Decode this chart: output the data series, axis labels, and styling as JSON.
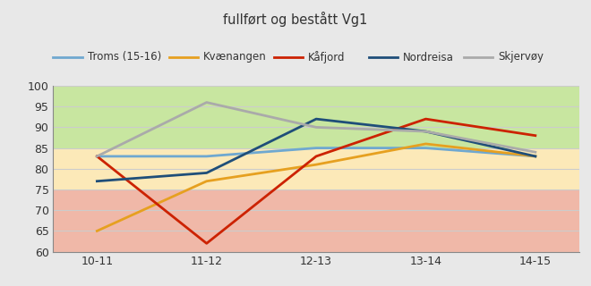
{
  "title": "fullført og bestått Vg1",
  "x_labels": [
    "10-11",
    "11-12",
    "12-13",
    "13-14",
    "14-15"
  ],
  "series": {
    "Troms (15-16)": {
      "values": [
        83,
        83,
        85,
        85,
        83
      ],
      "color": "#6fa8d0",
      "linewidth": 2.0
    },
    "Kvænangen": {
      "values": [
        65,
        77,
        81,
        86,
        83
      ],
      "color": "#e6a020",
      "linewidth": 2.0
    },
    "Kåfjord": {
      "values": [
        83,
        62,
        83,
        92,
        88
      ],
      "color": "#cc2200",
      "linewidth": 2.0
    },
    "Nordreisa": {
      "values": [
        77,
        79,
        92,
        89,
        83
      ],
      "color": "#1f4e79",
      "linewidth": 2.0
    },
    "Skjervøy": {
      "values": [
        83,
        96,
        90,
        89,
        84
      ],
      "color": "#aaaaaa",
      "linewidth": 2.0
    }
  },
  "ylim": [
    60,
    100
  ],
  "yticks": [
    60,
    65,
    70,
    75,
    80,
    85,
    90,
    95,
    100
  ],
  "bg_zones": [
    {
      "ymin": 60,
      "ymax": 75,
      "color": "#f0b8a8"
    },
    {
      "ymin": 75,
      "ymax": 85,
      "color": "#fce9b8"
    },
    {
      "ymin": 85,
      "ymax": 100,
      "color": "#c8e6a0"
    }
  ],
  "grid_color": "#cccccc",
  "figure_bg": "#e8e8e8",
  "plot_bg": "#ffffff",
  "legend_order": [
    "Troms (15-16)",
    "Kvænangen",
    "Kåfjord",
    "Nordreisa",
    "Skjervøy"
  ]
}
